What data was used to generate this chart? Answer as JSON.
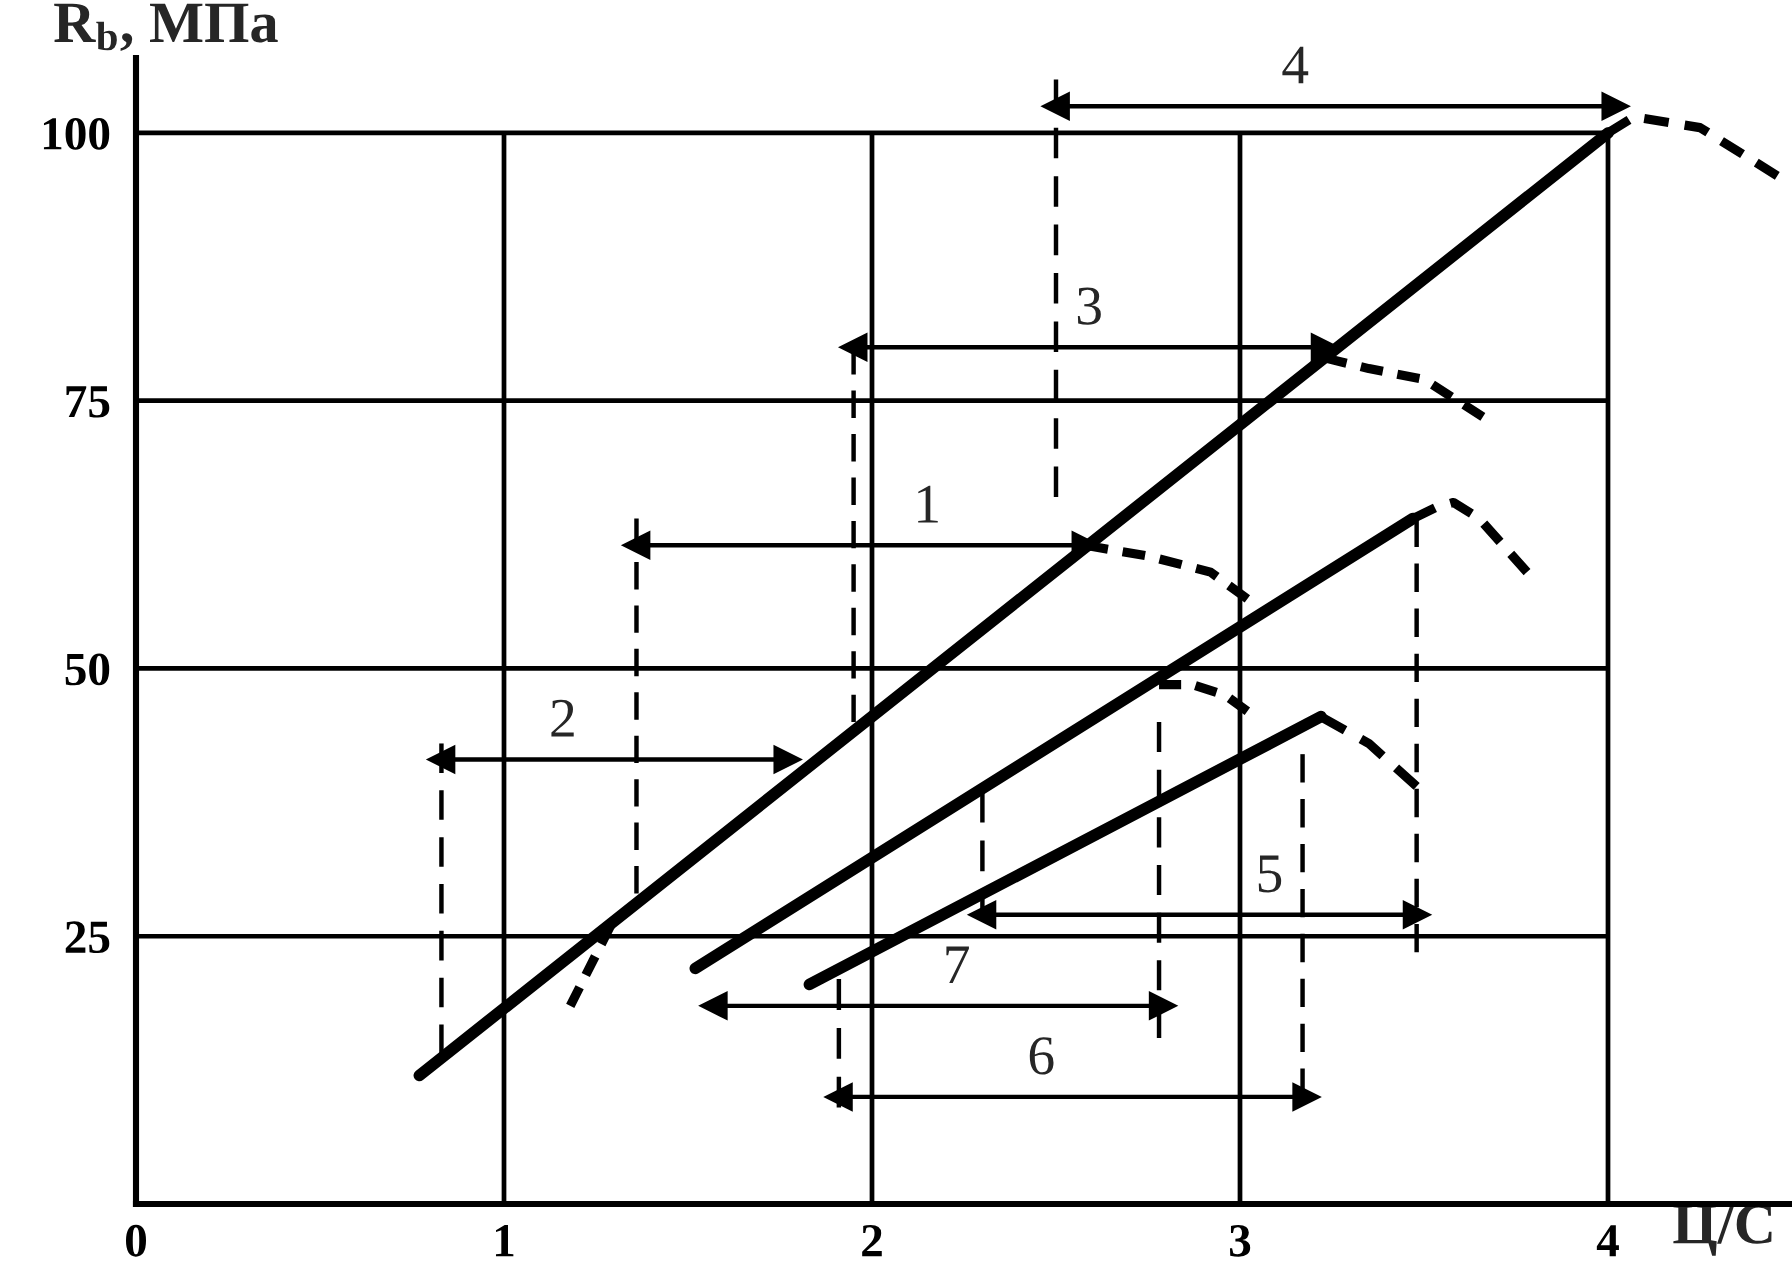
{
  "chart_data": {
    "type": "line",
    "xlabel": "Ц/С",
    "ylabel": "R$_{b}$, МПа",
    "xlim": [
      0,
      4.5
    ],
    "ylim": [
      0,
      107
    ],
    "xticks": [
      0,
      1,
      2,
      3,
      4
    ],
    "yticks": [
      25,
      50,
      75,
      100
    ],
    "grid": true,
    "series": [
      {
        "x": [
          0.77,
          4.0
        ],
        "values": [
          12,
          100
        ],
        "color": "#000000",
        "line_style": "solid"
      },
      {
        "x": [
          4.0,
          4.07,
          4.25,
          4.46
        ],
        "values": [
          100,
          101.5,
          100.5,
          96
        ],
        "color": "#000000",
        "line_style": "dashed"
      },
      {
        "x": [
          2.58,
          2.75,
          2.92,
          3.02
        ],
        "values": [
          61.5,
          60.5,
          59,
          56.5
        ],
        "color": "#000000",
        "line_style": "dashed"
      },
      {
        "x": [
          3.23,
          3.35,
          3.5,
          3.66
        ],
        "values": [
          79,
          78,
          77,
          73.5
        ],
        "color": "#000000",
        "line_style": "dashed"
      },
      {
        "x": [
          1.29,
          1.18
        ],
        "values": [
          26,
          18.5
        ],
        "color": "#000000",
        "line_style": "dashed"
      },
      {
        "x": [
          1.52,
          3.47
        ],
        "values": [
          22,
          64
        ],
        "color": "#000000",
        "line_style": "solid"
      },
      {
        "x": [
          3.47,
          3.53,
          3.58,
          3.65,
          3.78
        ],
        "values": [
          64,
          65,
          65.5,
          64,
          59
        ],
        "color": "#000000",
        "line_style": "dashed"
      },
      {
        "x": [
          2.78,
          2.87,
          2.96,
          3.02
        ],
        "values": [
          48.5,
          48.5,
          47.5,
          46
        ],
        "color": "#000000",
        "line_style": "dashed"
      },
      {
        "x": [
          1.83,
          3.22
        ],
        "values": [
          20.5,
          45.5
        ],
        "color": "#000000",
        "line_style": "solid"
      },
      {
        "x": [
          3.22,
          3.35,
          3.48
        ],
        "values": [
          45.5,
          43,
          39
        ],
        "color": "#000000",
        "line_style": "dashed"
      },
      {
        "x": [
          0.83,
          0.83
        ],
        "values": [
          43,
          14
        ],
        "color": "#000000",
        "line_style": "dashed"
      },
      {
        "x": [
          1.36,
          1.36
        ],
        "values": [
          64,
          29
        ],
        "color": "#000000",
        "line_style": "dashed"
      },
      {
        "x": [
          1.95,
          1.95
        ],
        "values": [
          80,
          45
        ],
        "color": "#000000",
        "line_style": "dashed"
      },
      {
        "x": [
          2.5,
          2.5
        ],
        "values": [
          105,
          66
        ],
        "color": "#000000",
        "line_style": "dashed"
      },
      {
        "x": [
          2.3,
          2.3
        ],
        "values": [
          38.5,
          26.5
        ],
        "color": "#000000",
        "line_style": "dashed"
      },
      {
        "x": [
          3.48,
          3.48
        ],
        "values": [
          64,
          23.5
        ],
        "color": "#000000",
        "line_style": "dashed"
      },
      {
        "x": [
          1.91,
          1.91
        ],
        "values": [
          21,
          9
        ],
        "color": "#000000",
        "line_style": "dashed"
      },
      {
        "x": [
          2.78,
          2.78
        ],
        "values": [
          45,
          15.5
        ],
        "color": "#000000",
        "line_style": "dashed"
      },
      {
        "x": [
          3.17,
          3.17
        ],
        "values": [
          42,
          10
        ],
        "color": "#000000",
        "line_style": "dashed"
      },
      {
        "x": [
          1.36,
          2.58
        ],
        "values": [
          61.5,
          61.5
        ],
        "color": "#000000",
        "line_style": "solid",
        "marker": "triangle"
      },
      {
        "x": [
          0.83,
          1.77
        ],
        "values": [
          41.5,
          41.5
        ],
        "color": "#000000",
        "line_style": "solid",
        "marker": "triangle"
      },
      {
        "x": [
          1.95,
          3.23
        ],
        "values": [
          80,
          80
        ],
        "color": "#000000",
        "line_style": "solid",
        "marker": "triangle"
      },
      {
        "x": [
          2.5,
          4.02
        ],
        "values": [
          102.5,
          102.5
        ],
        "color": "#000000",
        "line_style": "solid",
        "marker": "triangle"
      },
      {
        "x": [
          2.3,
          3.48
        ],
        "values": [
          27,
          27
        ],
        "color": "#000000",
        "line_style": "solid",
        "marker": "triangle"
      },
      {
        "x": [
          1.91,
          3.18
        ],
        "values": [
          10,
          10
        ],
        "color": "#000000",
        "line_style": "solid",
        "marker": "triangle"
      },
      {
        "x": [
          1.57,
          2.79
        ],
        "values": [
          18.5,
          18.5
        ],
        "color": "#000000",
        "line_style": "solid",
        "marker": "triangle"
      }
    ],
    "annotations": [
      {
        "text": "1",
        "x": 2.15,
        "y": 61.5
      },
      {
        "text": "2",
        "x": 1.16,
        "y": 41.5
      },
      {
        "text": "3",
        "x": 2.59,
        "y": 80
      },
      {
        "text": "4",
        "x": 3.15,
        "y": 102.5
      },
      {
        "text": "5",
        "x": 3.08,
        "y": 27
      },
      {
        "text": "6",
        "x": 2.46,
        "y": 10
      },
      {
        "text": "7",
        "x": 2.23,
        "y": 18.5
      }
    ]
  }
}
